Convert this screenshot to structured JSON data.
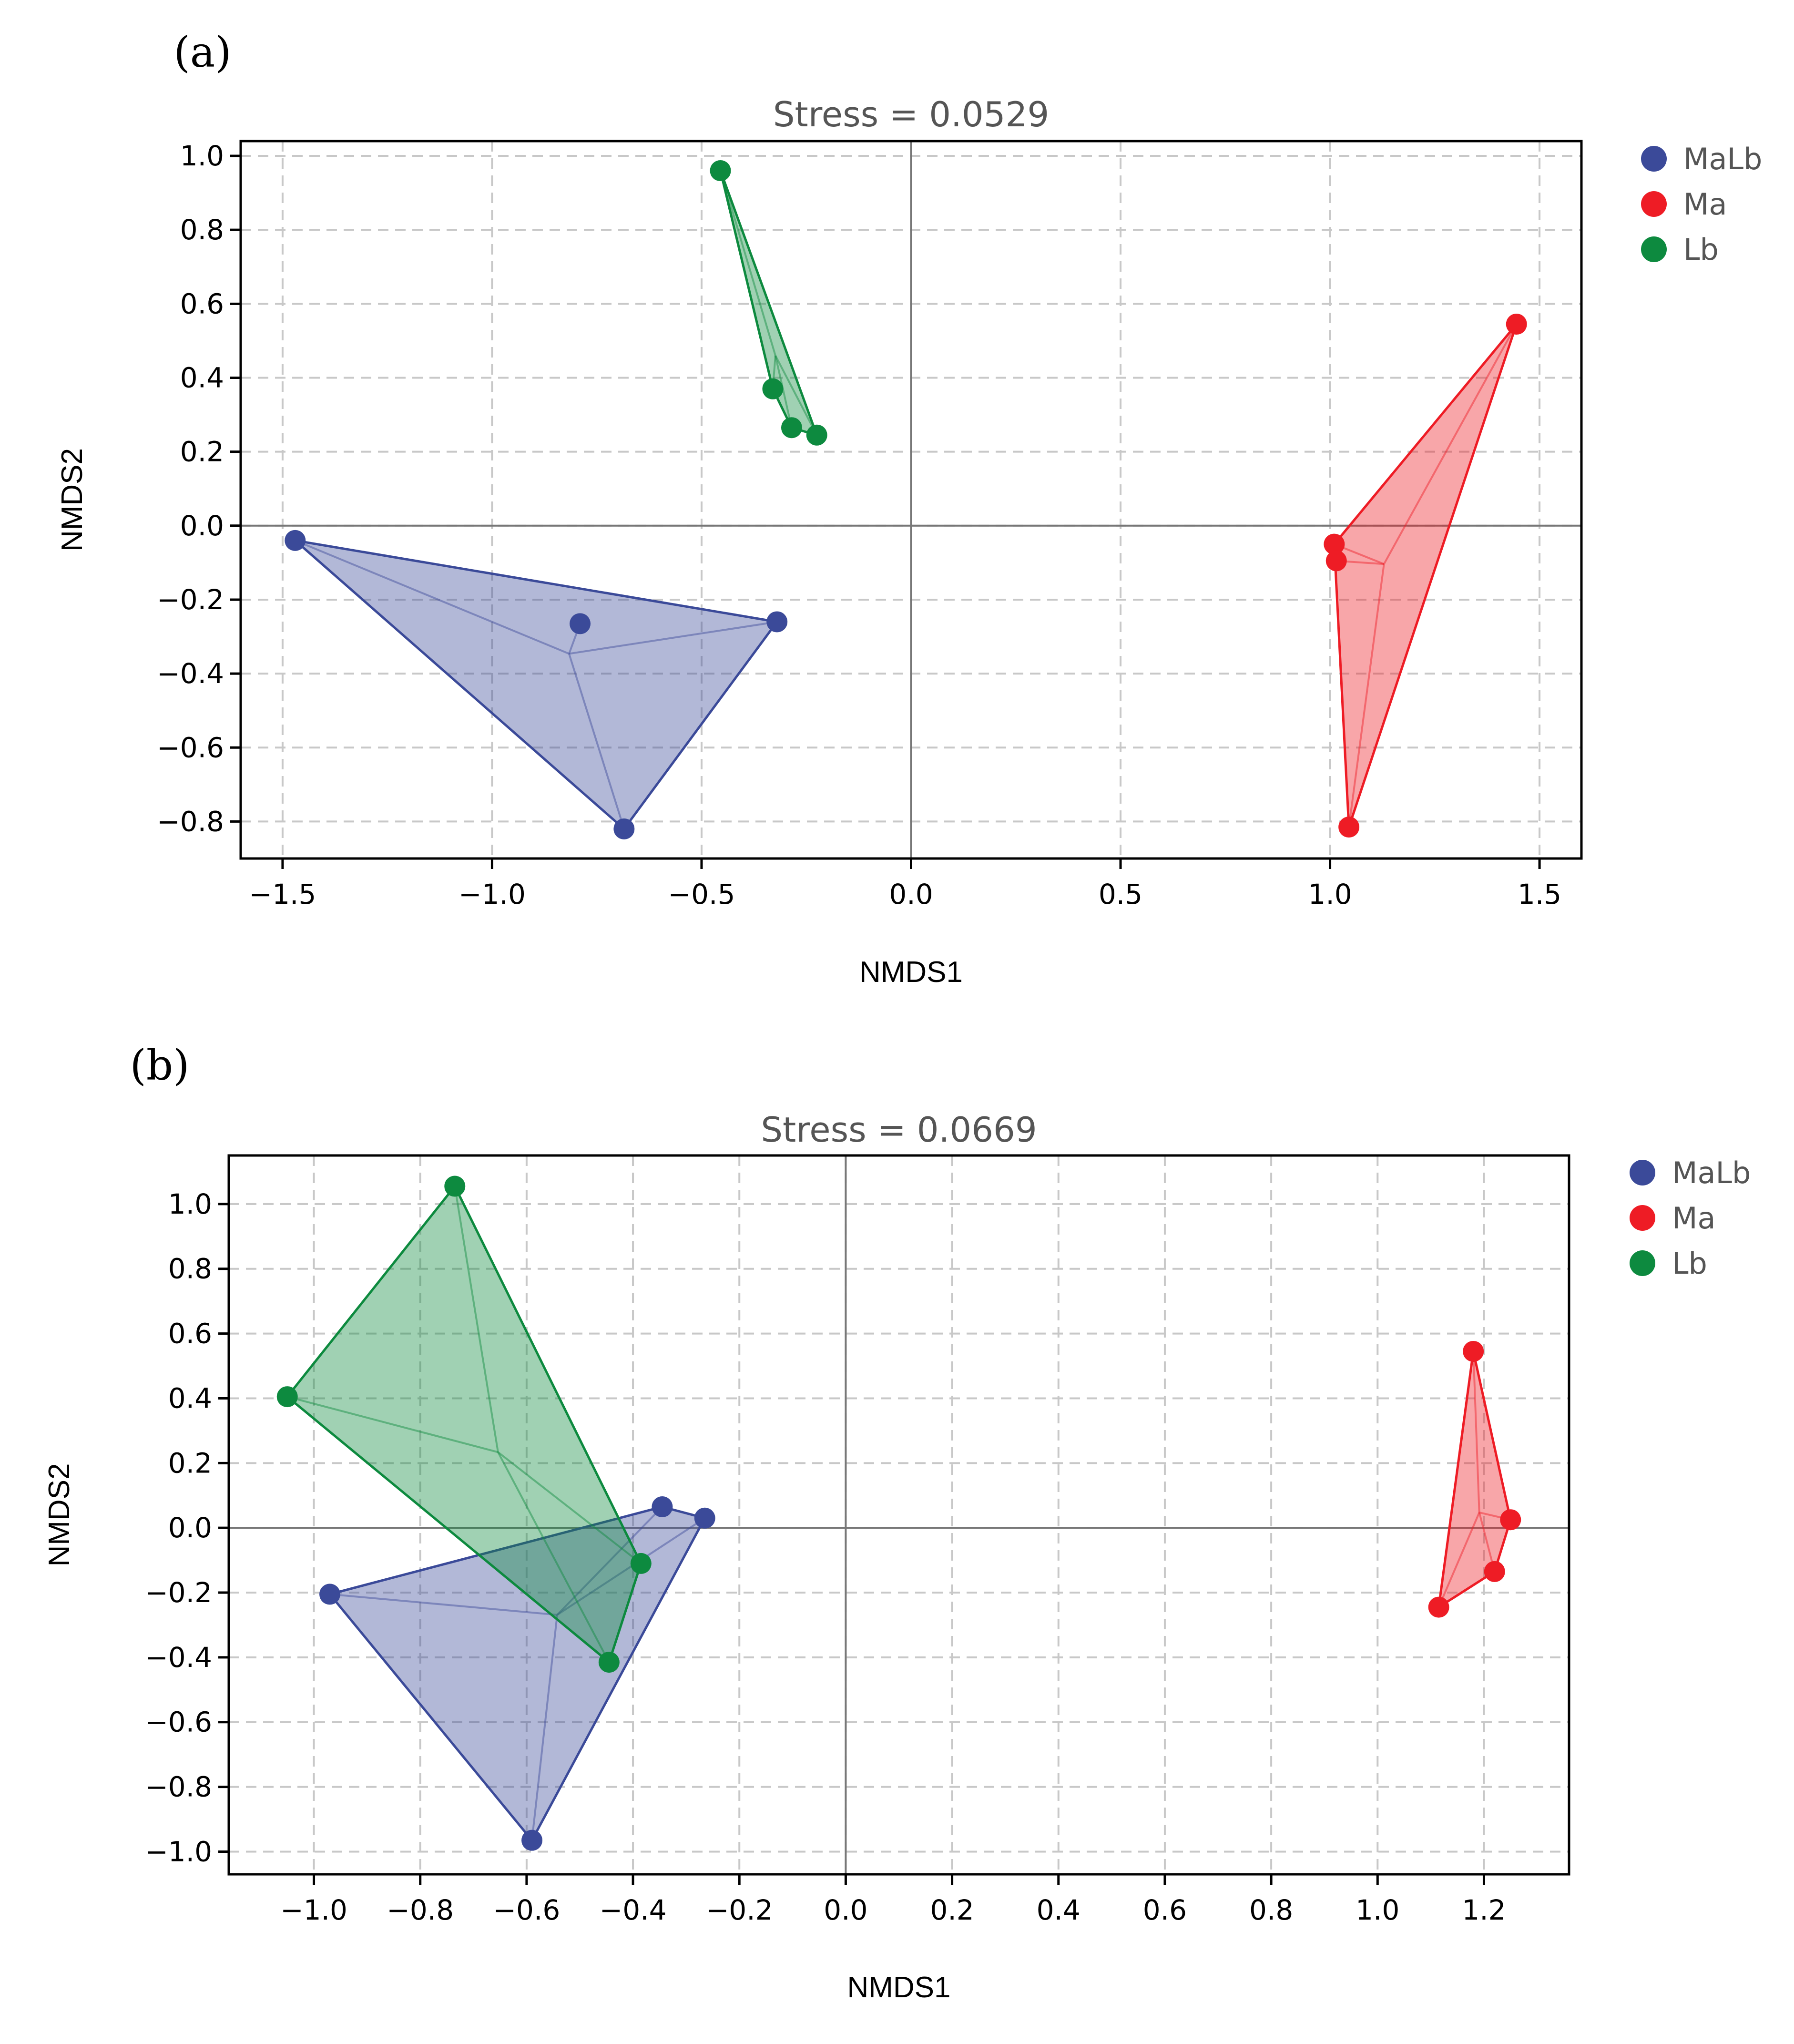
{
  "figure": {
    "colors": {
      "MaLb": "#3b4a99",
      "Ma": "#ee1c25",
      "Lb": "#0d8a3f"
    },
    "legend": [
      {
        "group": "MaLb",
        "label": "MaLb"
      },
      {
        "group": "Ma",
        "label": "Ma"
      },
      {
        "group": "Lb",
        "label": "Lb"
      }
    ]
  },
  "chart_data": [
    {
      "type": "scatter",
      "panel_label": "(a)",
      "title": "Stress = 0.0529",
      "xlabel": "NMDS1",
      "ylabel": "NMDS2",
      "xlim": [
        -1.6,
        1.6
      ],
      "ylim": [
        -0.9,
        1.04
      ],
      "x_ticks": [
        -1.5,
        -1.0,
        -0.5,
        0.0,
        0.5,
        1.0,
        1.5
      ],
      "x_tick_labels": [
        "−1.5",
        "−1.0",
        "−0.5",
        "0.0",
        "0.5",
        "1.0",
        "1.5"
      ],
      "y_ticks": [
        1.0,
        0.8,
        0.6,
        0.4,
        0.2,
        0.0,
        -0.2,
        -0.4,
        -0.6,
        -0.8
      ],
      "y_tick_labels": [
        "1.0",
        "0.8",
        "0.6",
        "0.4",
        "0.2",
        "0.0",
        "−0.2",
        "−0.4",
        "−0.6",
        "−0.8"
      ],
      "grid": true,
      "legend_position": "right-outside-top",
      "series": [
        {
          "name": "MaLb",
          "points": [
            [
              -1.47,
              -0.04
            ],
            [
              -0.79,
              -0.265
            ],
            [
              -0.32,
              -0.26
            ],
            [
              -0.685,
              -0.82
            ]
          ]
        },
        {
          "name": "Ma",
          "points": [
            [
              1.445,
              0.545
            ],
            [
              1.01,
              -0.05
            ],
            [
              1.015,
              -0.095
            ],
            [
              1.045,
              -0.815
            ]
          ]
        },
        {
          "name": "Lb",
          "points": [
            [
              -0.455,
              0.96
            ],
            [
              -0.33,
              0.37
            ],
            [
              -0.285,
              0.265
            ],
            [
              -0.225,
              0.245
            ]
          ]
        }
      ]
    },
    {
      "type": "scatter",
      "panel_label": "(b)",
      "title": "Stress = 0.0669",
      "xlabel": "NMDS1",
      "ylabel": "NMDS2",
      "xlim": [
        -1.16,
        1.36
      ],
      "ylim": [
        -1.07,
        1.15
      ],
      "x_ticks": [
        -1.0,
        -0.8,
        -0.6,
        -0.4,
        -0.2,
        0.0,
        0.2,
        0.4,
        0.6,
        0.8,
        1.0,
        1.2
      ],
      "x_tick_labels": [
        "−1.0",
        "−0.8",
        "−0.6",
        "−0.4",
        "−0.2",
        "0.0",
        "0.2",
        "0.4",
        "0.6",
        "0.8",
        "1.0",
        "1.2"
      ],
      "y_ticks": [
        1.0,
        0.8,
        0.6,
        0.4,
        0.2,
        0.0,
        -0.2,
        -0.4,
        -0.6,
        -0.8,
        -1.0
      ],
      "y_tick_labels": [
        "1.0",
        "0.8",
        "0.6",
        "0.4",
        "0.2",
        "0.0",
        "−0.2",
        "−0.4",
        "−0.6",
        "−0.8",
        "−1.0"
      ],
      "grid": true,
      "legend_position": "right-outside-top",
      "series": [
        {
          "name": "MaLb",
          "points": [
            [
              -0.97,
              -0.205
            ],
            [
              -0.345,
              0.065
            ],
            [
              -0.265,
              0.03
            ],
            [
              -0.59,
              -0.965
            ]
          ]
        },
        {
          "name": "Ma",
          "points": [
            [
              1.18,
              0.545
            ],
            [
              1.25,
              0.025
            ],
            [
              1.22,
              -0.135
            ],
            [
              1.115,
              -0.245
            ]
          ]
        },
        {
          "name": "Lb",
          "points": [
            [
              -0.735,
              1.055
            ],
            [
              -1.05,
              0.405
            ],
            [
              -0.385,
              -0.11
            ],
            [
              -0.445,
              -0.415
            ]
          ]
        }
      ]
    }
  ]
}
